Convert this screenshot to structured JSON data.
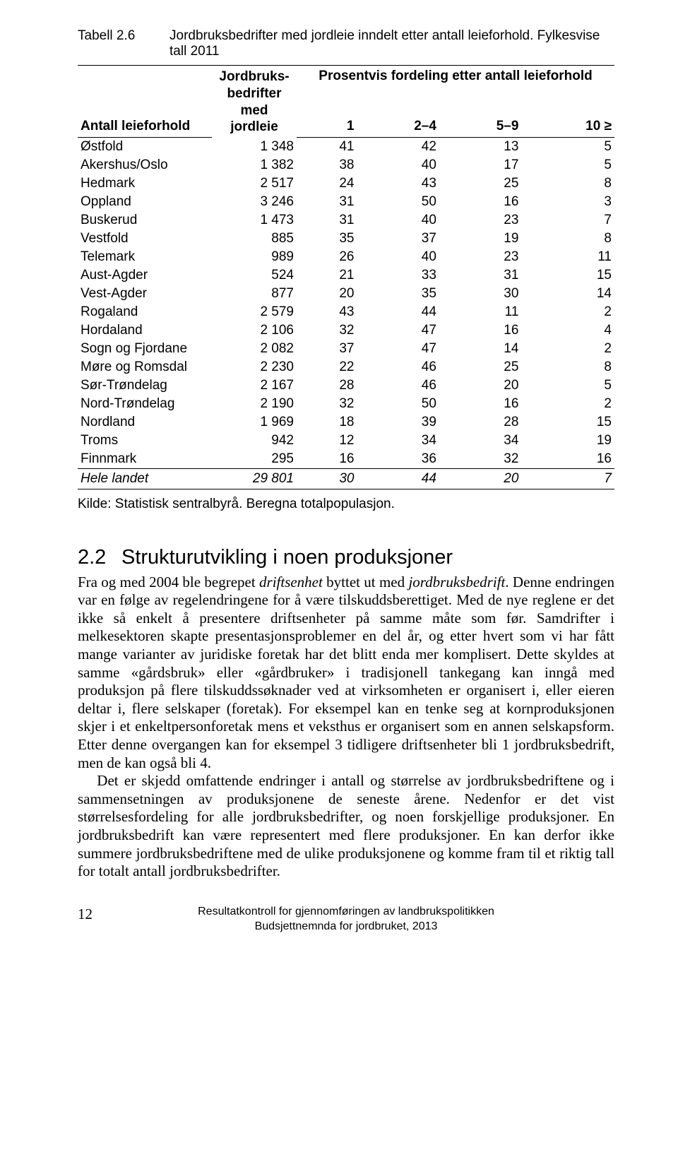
{
  "table": {
    "label": "Tabell 2.6",
    "title": "Jordbruksbedrifter med jordleie inndelt etter antall leieforhold. Fylkesvise tall 2011",
    "jb_head_l1": "Jordbruks-",
    "jb_head_l2": "bedrifter med",
    "jb_head_l3": "jordleie",
    "pct_head": "Prosentvis fordeling etter antall leieforhold",
    "row_label_head": "Antall leieforhold",
    "col_1": "1",
    "col_2": "2–4",
    "col_3": "5–9",
    "col_4": "10 ≥",
    "rows": [
      {
        "name": "Østfold",
        "jb": "1 348",
        "c1": "41",
        "c2": "42",
        "c3": "13",
        "c4": "5"
      },
      {
        "name": "Akershus/Oslo",
        "jb": "1 382",
        "c1": "38",
        "c2": "40",
        "c3": "17",
        "c4": "5"
      },
      {
        "name": "Hedmark",
        "jb": "2 517",
        "c1": "24",
        "c2": "43",
        "c3": "25",
        "c4": "8"
      },
      {
        "name": "Oppland",
        "jb": "3 246",
        "c1": "31",
        "c2": "50",
        "c3": "16",
        "c4": "3"
      },
      {
        "name": "Buskerud",
        "jb": "1 473",
        "c1": "31",
        "c2": "40",
        "c3": "23",
        "c4": "7"
      },
      {
        "name": "Vestfold",
        "jb": "885",
        "c1": "35",
        "c2": "37",
        "c3": "19",
        "c4": "8"
      },
      {
        "name": "Telemark",
        "jb": "989",
        "c1": "26",
        "c2": "40",
        "c3": "23",
        "c4": "11"
      },
      {
        "name": "Aust-Agder",
        "jb": "524",
        "c1": "21",
        "c2": "33",
        "c3": "31",
        "c4": "15"
      },
      {
        "name": "Vest-Agder",
        "jb": "877",
        "c1": "20",
        "c2": "35",
        "c3": "30",
        "c4": "14"
      },
      {
        "name": "Rogaland",
        "jb": "2 579",
        "c1": "43",
        "c2": "44",
        "c3": "11",
        "c4": "2"
      },
      {
        "name": "Hordaland",
        "jb": "2 106",
        "c1": "32",
        "c2": "47",
        "c3": "16",
        "c4": "4"
      },
      {
        "name": "Sogn og Fjordane",
        "jb": "2 082",
        "c1": "37",
        "c2": "47",
        "c3": "14",
        "c4": "2"
      },
      {
        "name": "Møre og Romsdal",
        "jb": "2 230",
        "c1": "22",
        "c2": "46",
        "c3": "25",
        "c4": "8"
      },
      {
        "name": "Sør-Trøndelag",
        "jb": "2 167",
        "c1": "28",
        "c2": "46",
        "c3": "20",
        "c4": "5"
      },
      {
        "name": "Nord-Trøndelag",
        "jb": "2 190",
        "c1": "32",
        "c2": "50",
        "c3": "16",
        "c4": "2"
      },
      {
        "name": "Nordland",
        "jb": "1 969",
        "c1": "18",
        "c2": "39",
        "c3": "28",
        "c4": "15"
      },
      {
        "name": "Troms",
        "jb": "942",
        "c1": "12",
        "c2": "34",
        "c3": "34",
        "c4": "19"
      },
      {
        "name": "Finnmark",
        "jb": "295",
        "c1": "16",
        "c2": "36",
        "c3": "32",
        "c4": "16"
      },
      {
        "name": "Hele landet",
        "jb": "29 801",
        "c1": "30",
        "c2": "44",
        "c3": "20",
        "c4": "7"
      }
    ],
    "source": "Kilde: Statistisk sentralbyrå. Beregna totalpopulasjon."
  },
  "section": {
    "num": "2.2",
    "title": "Strukturutvikling i noen produksjoner",
    "p1": "Fra og med 2004 ble begrepet <i>driftsenhet</i> byttet ut med <i>jordbruksbedrift</i>. Denne endringen var en følge av regelendringene for å være tilskuddsberettiget. Med de nye reglene er det ikke så enkelt å presentere driftsenheter på samme måte som før. Samdrifter i melkesektoren skapte presentasjonsproblemer en del år, og etter hvert som vi har fått mange varianter av juridiske foretak har det blitt enda mer komplisert. Dette skyldes at samme «gårdsbruk» eller «gårdbruker» i tradisjonell tankegang kan inngå med produksjon på flere tilskuddssøknader ved at virksomheten er organisert i, eller eieren deltar i, flere selskaper (foretak). For eksempel kan en tenke seg at kornproduksjonen skjer i et enkeltpersonforetak mens et veksthus er organisert som en annen selskapsform. Etter denne overgangen kan for eksempel 3 tidligere driftsenheter bli 1 jordbruksbedrift, men de kan også bli 4.",
    "p2": "Det er skjedd omfattende endringer i antall og størrelse av jordbruksbedriftene og i sammensetningen av produksjonene de seneste årene. Nedenfor er det vist størrelsesfordeling for alle jordbruksbedrifter, og noen forskjellige produksjoner. En jordbruksbedrift kan være representert med flere produksjoner. En kan derfor ikke summere jordbruksbedriftene med de ulike produksjonene og komme fram til et riktig tall for totalt antall jordbruksbedrifter."
  },
  "footer": {
    "pagenum": "12",
    "line1": "Resultatkontroll for gjennomføringen av landbrukspolitikken",
    "line2": "Budsjettnemnda for jordbruket, 2013"
  }
}
